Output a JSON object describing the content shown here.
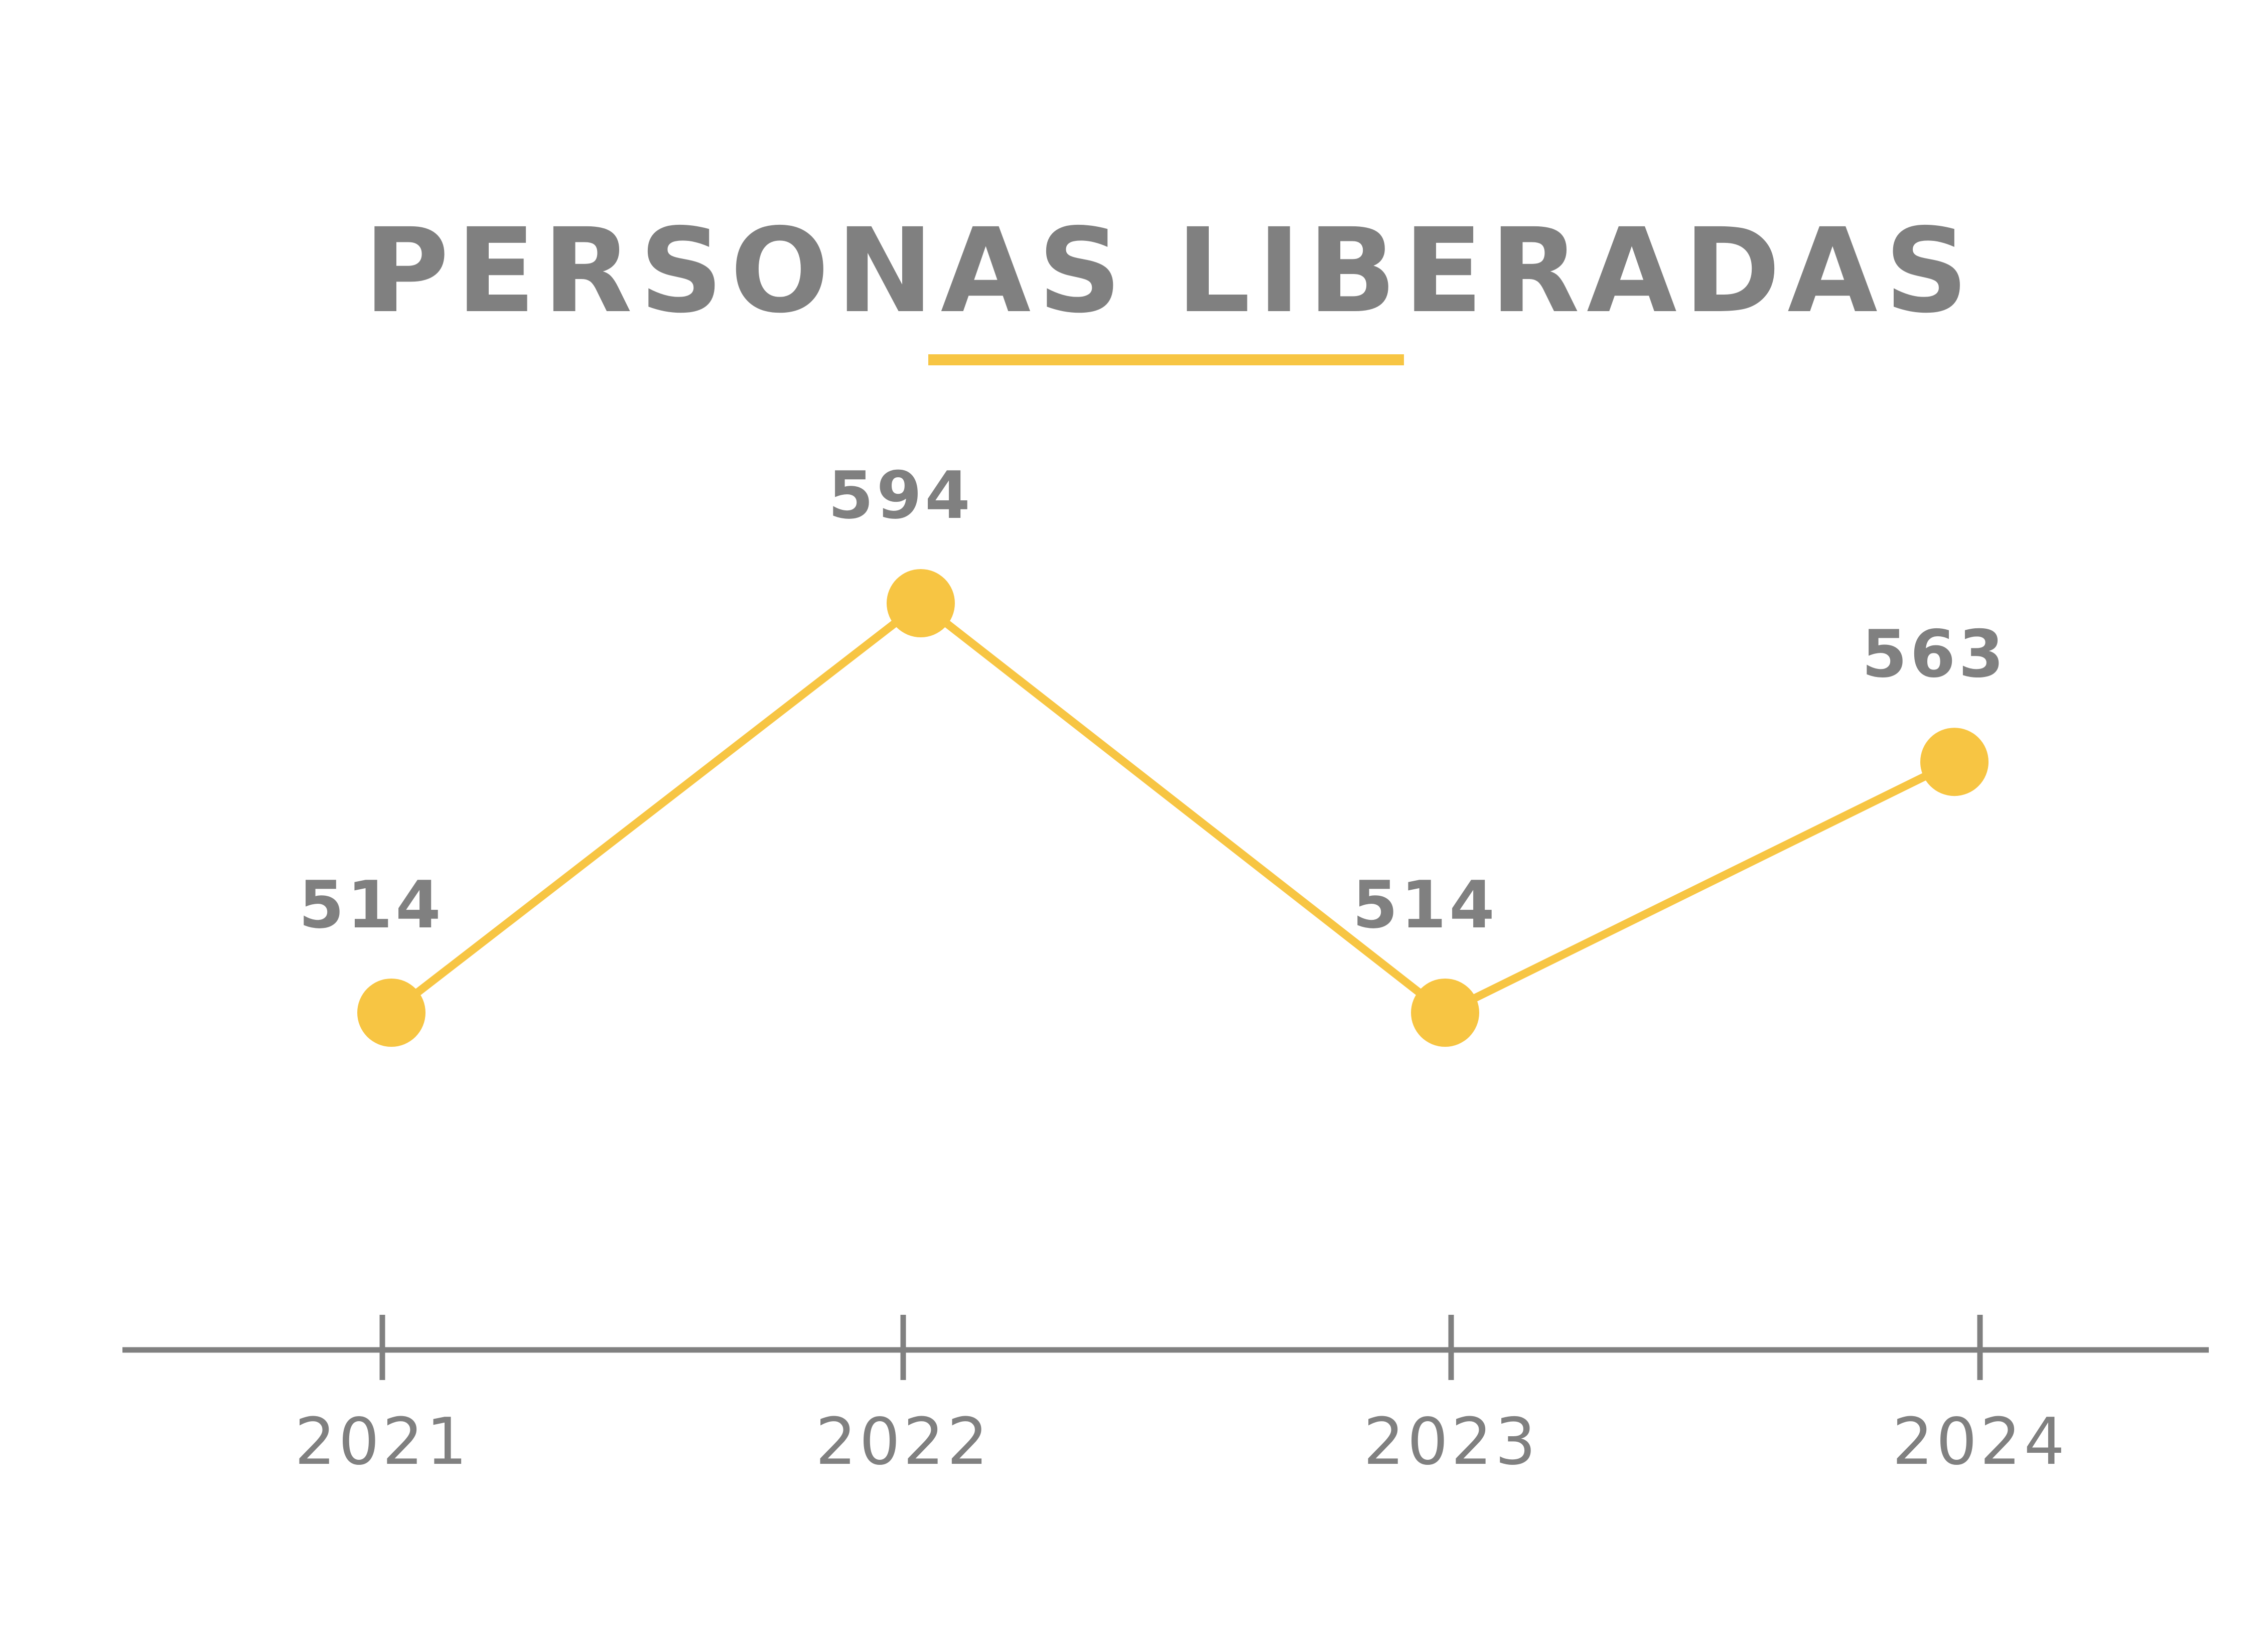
{
  "colors": {
    "accent": "#F7C543",
    "text": "#808080",
    "axis": "#808080",
    "background": "#FFFFFF"
  },
  "chart_data": {
    "type": "line",
    "title": "PERSONAS LIBERADAS",
    "categories": [
      "2021",
      "2022",
      "2023",
      "2024"
    ],
    "series": [
      {
        "values": [
          514,
          594,
          514,
          563
        ],
        "labels": [
          "514",
          "594",
          "514",
          "563"
        ]
      }
    ],
    "grid": false,
    "legend": "none"
  }
}
